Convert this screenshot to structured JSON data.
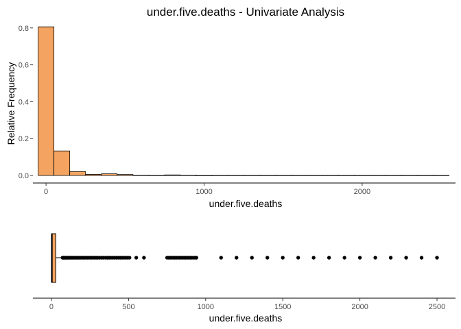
{
  "colors": {
    "fill": "#F4A460",
    "stroke": "#000000",
    "axis": "#000000",
    "tick_text": "#4d4d4d",
    "point": "#000000"
  },
  "chart_data": [
    {
      "type": "histogram",
      "title": "under.five.deaths - Univariate Analysis",
      "xlabel": "under.five.deaths",
      "ylabel": "Relative Frequency",
      "xlim": [
        -50,
        2560
      ],
      "ylim": [
        0,
        0.84
      ],
      "x_ticks": [
        {
          "value": 0,
          "label": "0"
        },
        {
          "value": 1000,
          "label": "1000"
        },
        {
          "value": 2000,
          "label": "2000"
        }
      ],
      "y_ticks": [
        {
          "value": 0.0,
          "label": "0.0"
        },
        {
          "value": 0.2,
          "label": "0.2"
        },
        {
          "value": 0.4,
          "label": "0.4"
        },
        {
          "value": 0.6,
          "label": "0.6"
        },
        {
          "value": 0.8,
          "label": "0.8"
        }
      ],
      "bin_width": 100,
      "bins": [
        {
          "x0": -50,
          "x1": 50,
          "value": 0.806
        },
        {
          "x0": 50,
          "x1": 150,
          "value": 0.133
        },
        {
          "x0": 150,
          "x1": 250,
          "value": 0.021
        },
        {
          "x0": 250,
          "x1": 350,
          "value": 0.006
        },
        {
          "x0": 350,
          "x1": 450,
          "value": 0.009
        },
        {
          "x0": 450,
          "x1": 550,
          "value": 0.005
        },
        {
          "x0": 550,
          "x1": 650,
          "value": 0.002
        },
        {
          "x0": 650,
          "x1": 750,
          "value": 0.001
        },
        {
          "x0": 750,
          "x1": 850,
          "value": 0.003
        },
        {
          "x0": 850,
          "x1": 950,
          "value": 0.002
        },
        {
          "x0": 950,
          "x1": 1050,
          "value": 0.0
        },
        {
          "x0": 1050,
          "x1": 1150,
          "value": 0.001
        },
        {
          "x0": 1150,
          "x1": 1250,
          "value": 0.001
        },
        {
          "x0": 1250,
          "x1": 1350,
          "value": 0.001
        },
        {
          "x0": 1350,
          "x1": 1450,
          "value": 0.001
        },
        {
          "x0": 1450,
          "x1": 1550,
          "value": 0.001
        },
        {
          "x0": 1550,
          "x1": 1650,
          "value": 0.001
        },
        {
          "x0": 1650,
          "x1": 1750,
          "value": 0.001
        },
        {
          "x0": 1750,
          "x1": 1850,
          "value": 0.001
        },
        {
          "x0": 1850,
          "x1": 1950,
          "value": 0.001
        },
        {
          "x0": 1950,
          "x1": 2050,
          "value": 0.001
        },
        {
          "x0": 2050,
          "x1": 2150,
          "value": 0.001
        },
        {
          "x0": 2150,
          "x1": 2250,
          "value": 0.001
        },
        {
          "x0": 2250,
          "x1": 2350,
          "value": 0.001
        },
        {
          "x0": 2350,
          "x1": 2450,
          "value": 0.001
        },
        {
          "x0": 2450,
          "x1": 2550,
          "value": 0.001
        }
      ]
    },
    {
      "type": "boxplot",
      "xlabel": "under.five.deaths",
      "xlim": [
        -120,
        2620
      ],
      "x_ticks": [
        {
          "value": 0,
          "label": "0"
        },
        {
          "value": 500,
          "label": "500"
        },
        {
          "value": 1000,
          "label": "1000"
        },
        {
          "value": 1500,
          "label": "1500"
        },
        {
          "value": 2000,
          "label": "2000"
        },
        {
          "value": 2500,
          "label": "2500"
        }
      ],
      "box": {
        "min": 0,
        "q1": 0,
        "median": 4,
        "q3": 28,
        "whisker_high": 70
      },
      "outliers": [
        72,
        76,
        80,
        85,
        90,
        95,
        100,
        105,
        110,
        116,
        122,
        128,
        134,
        140,
        147,
        154,
        161,
        168,
        175,
        183,
        191,
        199,
        207,
        215,
        224,
        233,
        242,
        251,
        260,
        270,
        280,
        290,
        300,
        312,
        324,
        336,
        350,
        362,
        374,
        386,
        398,
        410,
        422,
        434,
        446,
        458,
        470,
        482,
        494,
        506,
        550,
        600,
        750,
        760,
        770,
        780,
        790,
        800,
        810,
        820,
        830,
        840,
        850,
        860,
        870,
        880,
        890,
        900,
        910,
        920,
        930,
        940,
        1100,
        1200,
        1300,
        1400,
        1500,
        1600,
        1700,
        1800,
        1900,
        2000,
        2100,
        2200,
        2300,
        2400,
        2500
      ]
    }
  ]
}
